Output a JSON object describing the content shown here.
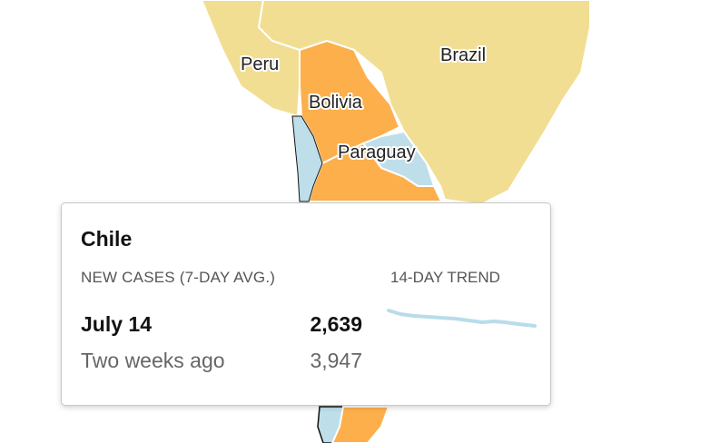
{
  "map": {
    "labels": {
      "peru": "Peru",
      "brazil": "Brazil",
      "bolivia": "Bolivia",
      "paraguay": "Paraguay"
    },
    "colors": {
      "light_yellow": "#f2de93",
      "orange": "#fdaf4b",
      "light_blue": "#bedfea",
      "border": "#ffffff",
      "dark_outline": "#111111"
    }
  },
  "tooltip": {
    "country": "Chile",
    "metric_label": "NEW CASES (7-DAY AVG.)",
    "trend_label": "14-DAY TREND",
    "current": {
      "label": "July 14",
      "value": "2,639"
    },
    "past": {
      "label": "Two weeks ago",
      "value": "3,947"
    },
    "trend_color": "#b9dcea"
  }
}
